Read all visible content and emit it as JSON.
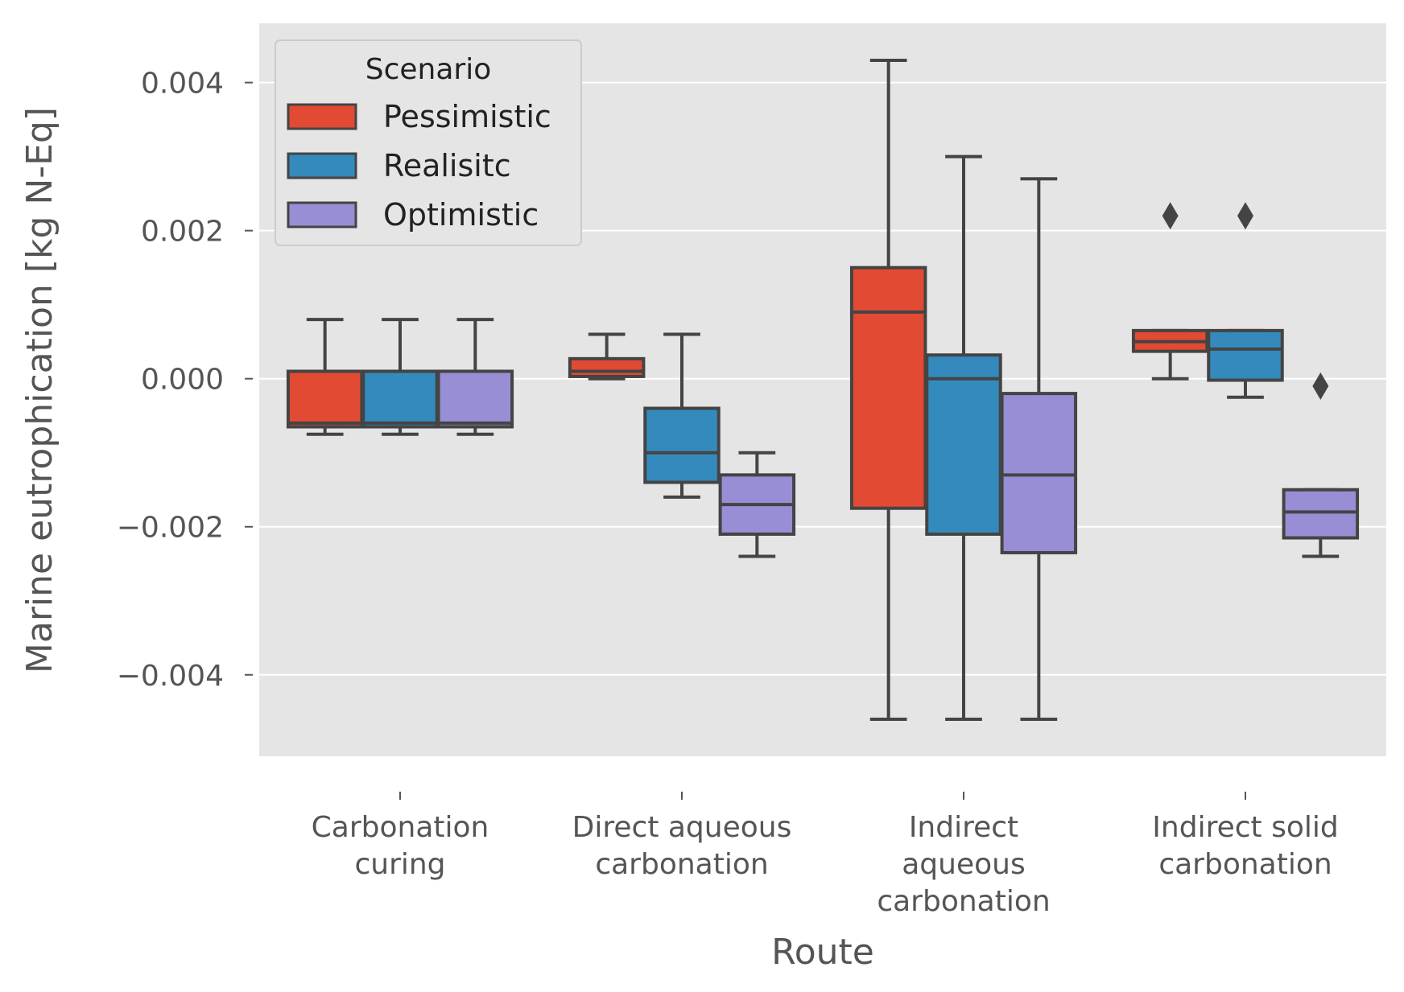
{
  "chart_data": {
    "type": "box",
    "xlabel": "Route",
    "ylabel": "Marine eutrophication [kg N-Eq]",
    "ylim": [
      -0.0051,
      0.0048
    ],
    "yticks": [
      {
        "value": 0.004,
        "label": "0.004"
      },
      {
        "value": 0.002,
        "label": "0.002"
      },
      {
        "value": 0.0,
        "label": "0.000"
      },
      {
        "value": -0.002,
        "label": "−0.002"
      },
      {
        "value": -0.004,
        "label": "−0.004"
      }
    ],
    "grid": true,
    "legend": {
      "title": "Scenario",
      "placement": "top-left"
    },
    "categories": [
      [
        "Carbonation",
        "curing"
      ],
      [
        "Direct aqueous",
        "carbonation"
      ],
      [
        "Indirect",
        "aqueous",
        "carbonation"
      ],
      [
        "Indirect solid",
        "carbonation"
      ]
    ],
    "series": [
      {
        "name": "Pessimistic",
        "color": "#E24A33",
        "boxes": [
          {
            "whislo": -0.00075,
            "q1": -0.00065,
            "med": -0.0006,
            "q3": 0.0001,
            "whishi": 0.0008,
            "fliers": []
          },
          {
            "whislo": 0.0,
            "q1": 3e-05,
            "med": 0.0001,
            "q3": 0.00027,
            "whishi": 0.0006,
            "fliers": []
          },
          {
            "whislo": -0.0046,
            "q1": -0.00175,
            "med": 0.0009,
            "q3": 0.0015,
            "whishi": 0.0043,
            "fliers": []
          },
          {
            "whislo": 0.0,
            "q1": 0.00037,
            "med": 0.0005,
            "q3": 0.00065,
            "whishi": 0.00065,
            "fliers": [
              0.0022
            ]
          }
        ]
      },
      {
        "name": "Realisitc",
        "color": "#348ABD",
        "boxes": [
          {
            "whislo": -0.00075,
            "q1": -0.00065,
            "med": -0.0006,
            "q3": 0.0001,
            "whishi": 0.0008,
            "fliers": []
          },
          {
            "whislo": -0.0016,
            "q1": -0.0014,
            "med": -0.001,
            "q3": -0.0004,
            "whishi": 0.0006,
            "fliers": []
          },
          {
            "whislo": -0.0046,
            "q1": -0.0021,
            "med": 0.0,
            "q3": 0.00032,
            "whishi": 0.003,
            "fliers": []
          },
          {
            "whislo": -0.00025,
            "q1": -2e-05,
            "med": 0.0004,
            "q3": 0.00065,
            "whishi": 0.00065,
            "fliers": [
              0.0022
            ]
          }
        ]
      },
      {
        "name": "Optimistic",
        "color": "#988ED5",
        "boxes": [
          {
            "whislo": -0.00075,
            "q1": -0.00065,
            "med": -0.0006,
            "q3": 0.0001,
            "whishi": 0.0008,
            "fliers": []
          },
          {
            "whislo": -0.0024,
            "q1": -0.0021,
            "med": -0.0017,
            "q3": -0.0013,
            "whishi": -0.001,
            "fliers": []
          },
          {
            "whislo": -0.0046,
            "q1": -0.00235,
            "med": -0.0013,
            "q3": -0.0002,
            "whishi": 0.0027,
            "fliers": []
          },
          {
            "whislo": -0.0024,
            "q1": -0.00215,
            "med": -0.0018,
            "q3": -0.0015,
            "whishi": -0.0015,
            "fliers": [
              -0.0001
            ]
          }
        ]
      }
    ]
  }
}
